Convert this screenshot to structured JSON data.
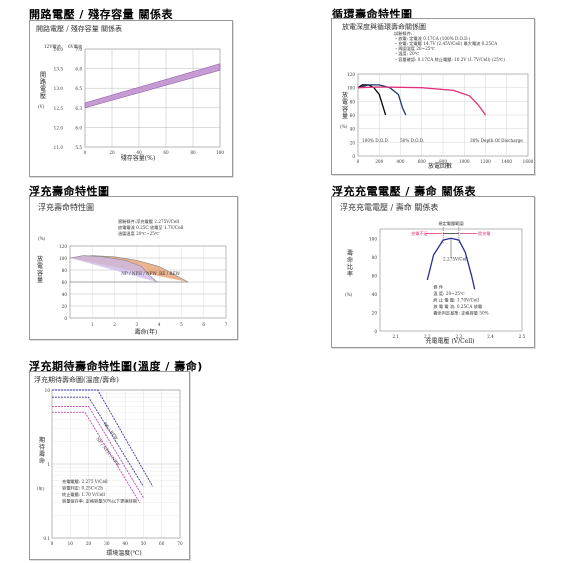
{
  "sections": {
    "s1": "開路電壓 / 殘存容量 關係表",
    "s2": "循環壽命特性圖",
    "s3": "浮充壽命特性圖",
    "s4": "浮充充電電壓 / 壽命 關係表",
    "s5": "浮充期待壽命特性圖(溫度 / 壽命)"
  },
  "chart_data": [
    {
      "type": "area",
      "title": "開路電壓 / 殘存容量 關係表",
      "header_left": "12V電池",
      "header_right": "6V電池",
      "ylabel": "開路電壓",
      "ylabel_unit": "(V)",
      "xlabel": "殘存容量(%)",
      "x_ticks": [
        "0",
        "20",
        "40",
        "60",
        "80",
        "100"
      ],
      "y_ticks_12v": [
        "11.0",
        "12.0",
        "12.5",
        "13.0",
        "13.5",
        "14.0"
      ],
      "y_ticks_6v": [
        "5.5",
        "6.0",
        "6.3",
        "6.5",
        "6.8",
        "7.0"
      ],
      "ylim": [
        11.0,
        14.0
      ],
      "xlim": [
        0,
        100
      ],
      "band_color": "#b685c8",
      "series": [
        {
          "x": [
            0,
            100
          ],
          "lower": [
            12.2,
            13.35
          ],
          "upper": [
            12.35,
            13.55
          ]
        }
      ]
    },
    {
      "type": "line",
      "title": "放電深度與循環壽命關係圖",
      "ylabel": "放電容量",
      "ylabel_unit": "(%)",
      "xlabel": "放電回數",
      "x_ticks": [
        "0",
        "200",
        "400",
        "600",
        "800",
        "1000",
        "1200",
        "1400",
        "1600"
      ],
      "y_ticks": [
        "0",
        "20",
        "40",
        "60",
        "80",
        "100",
        "120"
      ],
      "xlim": [
        0,
        1600
      ],
      "ylim": [
        0,
        120
      ],
      "conditions": [
        "試驗條件:",
        "・放電: 定電流 0.17CA (100% D.O.D.)",
        "・充電: 定電壓 14.7V (2.45V/Cell)   最大電流 0.25CA",
        "・周圍溫度 20~25℃",
        "・溫度: 20℃"
      ],
      "extra_text": "・容量確認: 0.17CA    終止電壓: 10.2V (1.7V/Cell) (25℃)",
      "series": [
        {
          "name": "100% D.O.D.",
          "color": "#000000",
          "x": [
            0,
            40,
            100,
            150,
            200,
            240,
            260
          ],
          "y": [
            100,
            104,
            104,
            100,
            90,
            70,
            60
          ]
        },
        {
          "name": "50% D.O.D.",
          "color": "#1a3a6e",
          "x": [
            0,
            100,
            200,
            300,
            380,
            420,
            450
          ],
          "y": [
            100,
            104,
            104,
            100,
            90,
            70,
            60
          ]
        },
        {
          "name": "30% Depth Of Discharge",
          "color": "#e0307a",
          "x": [
            0,
            200,
            600,
            900,
            1050,
            1130,
            1200
          ],
          "y": [
            100,
            101,
            100,
            96,
            88,
            75,
            60
          ]
        }
      ]
    },
    {
      "type": "area",
      "title": "浮充壽命特性圖",
      "ylabel": "放電容量",
      "ylabel_unit": "(%)",
      "xlabel": "壽命(年)",
      "x_ticks": [
        "0",
        "1",
        "2",
        "3",
        "4",
        "5",
        "6",
        "7"
      ],
      "y_ticks": [
        "0",
        "20",
        "40",
        "60",
        "80",
        "100",
        "120"
      ],
      "ylim": [
        0,
        120
      ],
      "xlim": [
        0,
        7
      ],
      "conditions": [
        "實驗條件:浮充電壓 2.275V/Cell",
        "放電電流 0.25C 放電至 1.7V/Cell",
        "週圍溫度 20℃~25℃"
      ],
      "series": [
        {
          "name": "NP / NPH / NPW",
          "color": "#c9b8e8",
          "x": [
            0,
            0.6,
            1.5,
            2.5,
            3.2,
            3.6,
            3.9
          ],
          "y": [
            100,
            104,
            102,
            96,
            86,
            70,
            60
          ]
        },
        {
          "name": "RE / REW",
          "color": "#e69a6b",
          "x": [
            0,
            1,
            2,
            3,
            4,
            4.8,
            5.3
          ],
          "y": [
            100,
            104,
            102,
            96,
            86,
            70,
            60
          ]
        }
      ]
    },
    {
      "type": "line",
      "title": "浮充充電電壓 / 壽命 關係表",
      "ylabel": "壽命比率",
      "ylabel_unit": "(%)",
      "xlabel": "充電電壓 (V/Cell)",
      "x_ticks": [
        "2.1",
        "2.2",
        "2.3",
        "2.4",
        "2.5"
      ],
      "y_ticks": [
        "0",
        "20",
        "40",
        "60",
        "80",
        "100"
      ],
      "xlim": [
        2.05,
        2.5
      ],
      "ylim": [
        0,
        110
      ],
      "range_label": "規定電壓範圍",
      "low_label": "充電不足",
      "high_label": "過充電",
      "point_label": "2.275V/Cell",
      "conditions": [
        "條 件",
        "溫 度: 20~25℃",
        "終 止 電 壓: 1.70V/Cell",
        "放 電 電 流: 0.25CA 放電",
        "壽命判定基準: 定格容量 50%"
      ],
      "series": [
        {
          "name": "life",
          "color": "#2b2b99",
          "x": [
            2.2,
            2.22,
            2.25,
            2.275,
            2.3,
            2.32,
            2.34,
            2.35
          ],
          "y": [
            55,
            82,
            98,
            100,
            98,
            85,
            60,
            45
          ]
        }
      ]
    },
    {
      "type": "line",
      "title": "浮充期待壽命圖(溫度/壽命)",
      "ylabel": "期待壽命",
      "ylabel_unit": "(年)",
      "xlabel": "環境溫度(℃)",
      "x_ticks": [
        "0",
        "10",
        "20",
        "30",
        "40",
        "50",
        "60",
        "70"
      ],
      "y_ticks": [
        "0.1",
        "1",
        "10"
      ],
      "xlim": [
        0,
        70
      ],
      "ylim": [
        0.1,
        10
      ],
      "log_y": true,
      "notes": [
        "充電電壓: 2.275 V/Cell",
        "容量判定: 0.25C×2h",
        "終止電壓: 1.70 V/Cell",
        "容量保存率: 定格容量50%以下更換時期"
      ],
      "series_labels": [
        "RE / REW",
        "NP / NPH / NPW"
      ],
      "series": [
        {
          "name": "RE / REW upper",
          "color": "#3a3aa0",
          "x": [
            0,
            25,
            55
          ],
          "y": [
            10,
            10,
            0.5
          ]
        },
        {
          "name": "RE / REW lower",
          "color": "#3a3aa0",
          "x": [
            0,
            20,
            50
          ],
          "y": [
            8,
            8,
            0.5
          ]
        },
        {
          "name": "NP / NPH / NPW upper",
          "color": "#c04ab8",
          "x": [
            0,
            20,
            50
          ],
          "y": [
            6,
            6,
            0.35
          ]
        },
        {
          "name": "NP / NPH / NPW lower",
          "color": "#c04ab8",
          "x": [
            0,
            18,
            48
          ],
          "y": [
            5,
            5,
            0.3
          ]
        }
      ]
    }
  ]
}
